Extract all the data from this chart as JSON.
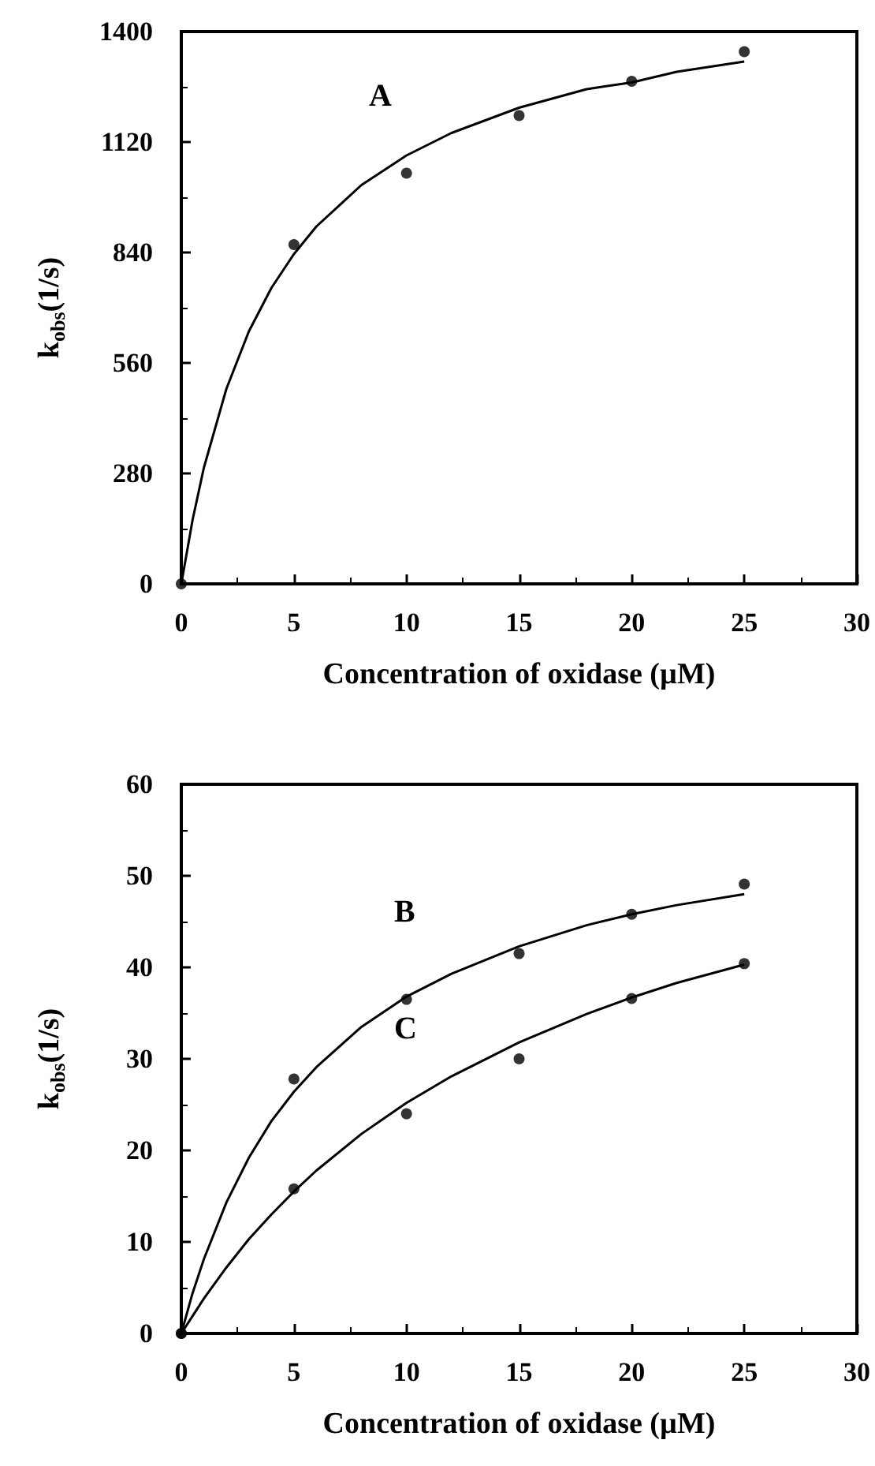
{
  "chart_data": [
    {
      "type": "scatter",
      "xlabel": "Concentration of oxidase (µM)",
      "ylabel": "k$_{obs}$(1/s)",
      "xlim": [
        0,
        30
      ],
      "xticks": [
        0,
        5,
        10,
        15,
        20,
        25,
        30
      ],
      "ylim": [
        0,
        1400
      ],
      "yticks": [
        0,
        280,
        560,
        840,
        1120,
        1400
      ],
      "annotations": [
        "A"
      ],
      "series": [
        {
          "color": "#000000",
          "marker": "circle",
          "x": [
            0,
            5,
            10,
            15,
            20,
            25
          ],
          "values": [
            0,
            860,
            1041,
            1187,
            1274,
            1349
          ]
        },
        {
          "type": "line",
          "marker": "none",
          "color": "#000000",
          "x": [
            0,
            0.5,
            1,
            2,
            3,
            4,
            5,
            6,
            8,
            10,
            12,
            15,
            18,
            20,
            22,
            25
          ],
          "values": [
            0,
            162,
            294,
            494,
            640,
            750,
            836,
            906,
            1011,
            1086,
            1143,
            1207,
            1254,
            1271,
            1298,
            1324
          ]
        }
      ]
    },
    {
      "type": "scatter",
      "xlabel": "Concentration of oxidase (µM)",
      "ylabel": "k$_{obs}$(1/s)",
      "xlim": [
        0,
        30
      ],
      "xticks": [
        0,
        5,
        10,
        15,
        20,
        25,
        30
      ],
      "ylim": [
        0,
        60
      ],
      "yticks": [
        0,
        10,
        20,
        30,
        40,
        50,
        60
      ],
      "annotations": [
        "B",
        "C"
      ],
      "series": [
        {
          "color": "#000000",
          "marker": "circle",
          "x": [
            0,
            5,
            10,
            15,
            20,
            25
          ],
          "values": [
            0,
            27.8,
            36.5,
            41.5,
            45.8,
            49.1
          ]
        },
        {
          "color": "#000000",
          "marker": "circle",
          "x": [
            0,
            5,
            10,
            15,
            20,
            25
          ],
          "values": [
            0,
            15.8,
            24.0,
            30.0,
            36.6,
            40.4
          ]
        },
        {
          "type": "line",
          "marker": "none",
          "color": "#000000",
          "x": [
            0,
            0.5,
            1,
            2,
            3,
            4,
            5,
            6,
            8,
            10,
            12,
            15,
            18,
            20,
            22,
            25
          ],
          "values": [
            0,
            4.4,
            8.1,
            14.3,
            19.2,
            23.2,
            26.4,
            29.1,
            33.5,
            36.8,
            39.3,
            42.3,
            44.6,
            45.8,
            46.8,
            48.0
          ]
        },
        {
          "type": "line",
          "marker": "none",
          "color": "#000000",
          "x": [
            0,
            1,
            2,
            3,
            4,
            5,
            6,
            8,
            10,
            12,
            15,
            18,
            20,
            22,
            25
          ],
          "values": [
            0,
            3.8,
            7.2,
            10.3,
            13.0,
            15.5,
            17.8,
            21.8,
            25.2,
            28.1,
            31.8,
            34.9,
            36.7,
            38.3,
            40.3
          ]
        }
      ]
    }
  ]
}
